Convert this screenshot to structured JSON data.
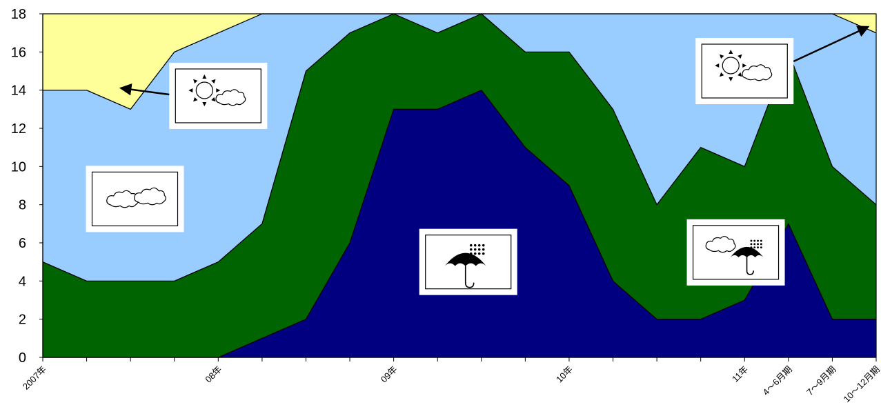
{
  "chart_data": {
    "type": "area",
    "stacked": true,
    "x_count": 20,
    "x_tick_labels": [
      {
        "index": 0,
        "label": "2007年"
      },
      {
        "index": 4,
        "label": "08年"
      },
      {
        "index": 8,
        "label": "09年"
      },
      {
        "index": 12,
        "label": "10年"
      },
      {
        "index": 16,
        "label": "11年"
      },
      {
        "index": 17,
        "label": "4～6月期"
      },
      {
        "index": 18,
        "label": "7～9月期"
      },
      {
        "index": 19,
        "label": "10～12月期"
      }
    ],
    "ylim": [
      0,
      18
    ],
    "yticks": [
      0,
      2,
      4,
      6,
      8,
      10,
      12,
      14,
      16,
      18
    ],
    "grid": false,
    "series": [
      {
        "key": "rain",
        "color": "#000080",
        "values": [
          0,
          0,
          0,
          0,
          0,
          1,
          2,
          6,
          13,
          13,
          14,
          11,
          9,
          4,
          2,
          2,
          3,
          7,
          2,
          2
        ]
      },
      {
        "key": "cloudy-rain",
        "color": "#006400",
        "values": [
          5,
          4,
          4,
          4,
          5,
          6,
          13,
          11,
          5,
          4,
          4,
          5,
          7,
          9,
          6,
          9,
          7,
          9,
          8,
          6
        ]
      },
      {
        "key": "cloudy",
        "color": "#99ccff",
        "values": [
          9,
          10,
          9,
          12,
          12,
          11,
          3,
          1,
          0,
          1,
          0,
          2,
          2,
          5,
          10,
          7,
          8,
          2,
          8,
          9
        ]
      },
      {
        "key": "sunny-cloudy",
        "color": "#ffff99",
        "values": [
          4,
          4,
          5,
          2,
          1,
          0,
          0,
          0,
          0,
          0,
          0,
          0,
          0,
          0,
          0,
          0,
          0,
          0,
          0,
          1
        ]
      }
    ],
    "icons": [
      {
        "name": "sun-cloud-icon",
        "x_index": 4,
        "y_value": 13.7,
        "arrow_to": {
          "x_index": 1.8,
          "y_value": 14.1
        }
      },
      {
        "name": "cloud-icon",
        "x_index": 2.1,
        "y_value": 8.3
      },
      {
        "name": "umbrella-rain-icon",
        "x_index": 9.7,
        "y_value": 5.0
      },
      {
        "name": "sun-cloud-icon",
        "x_index": 16.0,
        "y_value": 15.0,
        "arrow_to": {
          "x_index": 18.8,
          "y_value": 17.3
        }
      },
      {
        "name": "cloud-umbrella-rain-icon",
        "x_index": 15.8,
        "y_value": 5.5
      }
    ]
  }
}
